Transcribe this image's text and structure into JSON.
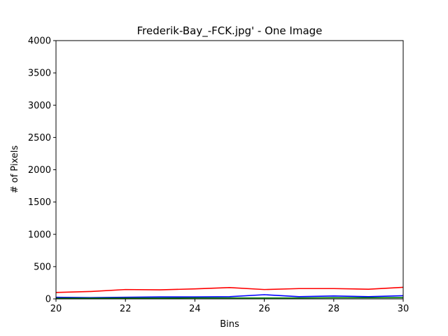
{
  "chart_data": {
    "type": "line",
    "title": "Frederik-Bay_-FCK.jpg' - One Image",
    "xlabel": "Bins",
    "ylabel": "# of Pixels",
    "xlim": [
      20,
      30
    ],
    "ylim": [
      0,
      4000
    ],
    "xticks": [
      20,
      22,
      24,
      26,
      28,
      30
    ],
    "yticks": [
      0,
      500,
      1000,
      1500,
      2000,
      2500,
      3000,
      3500,
      4000
    ],
    "grid": false,
    "x": [
      20,
      21,
      22,
      23,
      24,
      25,
      26,
      27,
      28,
      29,
      30
    ],
    "series": [
      {
        "color": "#ff0000",
        "values": [
          100,
          115,
          145,
          140,
          155,
          175,
          145,
          160,
          160,
          150,
          180
        ]
      },
      {
        "color": "#0000ff",
        "values": [
          25,
          20,
          25,
          30,
          30,
          35,
          65,
          35,
          45,
          35,
          50
        ]
      },
      {
        "color": "#008000",
        "values": [
          10,
          10,
          12,
          12,
          15,
          15,
          15,
          15,
          18,
          18,
          20
        ]
      }
    ]
  }
}
